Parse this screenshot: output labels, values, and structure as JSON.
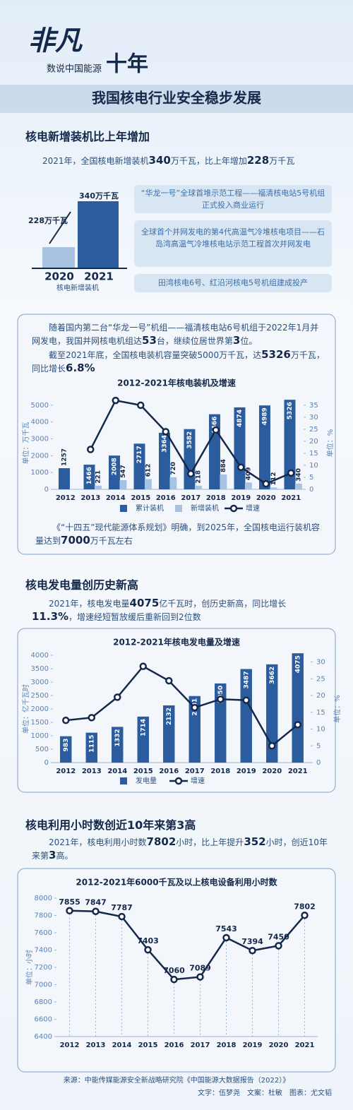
{
  "header": {
    "brand": "非凡",
    "subtitle": "数说中国能源",
    "decade": "十年",
    "title": "我国核电行业安全稳步发展"
  },
  "section1": {
    "heading": "核电新增装机比上年增加",
    "intro": {
      "parts": [
        "2021年，全国核电新增装机",
        "340",
        "万千瓦，比上年增加",
        "228",
        "万千瓦"
      ]
    },
    "graphic": {
      "year_a": "2020",
      "year_b": "2021",
      "increase": "228万千瓦",
      "total": "340万千瓦",
      "caption": "核电新增装机"
    },
    "bullets": [
      "“华龙一号”全球首堆示范工程——福清核电站5号机组正式投入商业运行",
      "全球首个并网发电的第4代高温气冷堆核电项目——石岛湾高温气冷堆核电站示范工程首次并网发电",
      "田湾核电6号、红沿河核电5号机组建成投产"
    ],
    "para1": {
      "parts": [
        "随着国内第二台“华龙一号”机组——福清核电站6号机组于2022年1月并网发电，我国并网核电机组达",
        "53",
        "台，继续位居世界第",
        "3",
        "位。"
      ]
    },
    "para2": {
      "parts": [
        "截至2021年底，全国核电装机容量突破5000万千瓦，达",
        "5326",
        "万千瓦，同比增长",
        "6.8%"
      ]
    },
    "note": {
      "parts": [
        "《“十四五”现代能源体系规划》明确，到2025年，全国核电运行装机容量达到",
        "7000",
        "万千瓦左右"
      ]
    }
  },
  "section2": {
    "heading": "核电发电量创历史新高",
    "intro": {
      "parts": [
        "2021年，核电发电量",
        "4075",
        "亿千瓦时，创历史新高，同比增长",
        "11.3%",
        "，增速经短暂放缓后重新回到2位数"
      ]
    }
  },
  "section3": {
    "heading": "核电利用小时数创近10年来第3高",
    "intro": {
      "parts": [
        "2021年，核电利用小时数",
        "7802",
        "小时，比上年提升",
        "352",
        "小时，创近10年来第",
        "3",
        "高。"
      ]
    }
  },
  "footer": {
    "source": "来源：中能传媒能源安全新战略研究院《中国能源大数据报告（2022）》",
    "credits": "文字：伍梦尧　文案：杜敏　图表：尤文韬"
  },
  "chart_data": [
    {
      "type": "combo",
      "title": "2012-2021年核电装机及增速",
      "y_label": "单位：万千瓦",
      "y2_label": "单位：%",
      "categories": [
        "2012",
        "2013",
        "2014",
        "2015",
        "2016",
        "2017",
        "2018",
        "2019",
        "2020",
        "2021"
      ],
      "series": [
        {
          "name": "累计装机",
          "kind": "bar",
          "color": "#2b5c9e",
          "values": [
            1257,
            1466,
            2008,
            2717,
            3364,
            3582,
            4466,
            4874,
            4989,
            5326
          ]
        },
        {
          "name": "新增装机",
          "kind": "bar",
          "color": "#a8c3e2",
          "values": [
            null,
            221,
            547,
            612,
            720,
            218,
            884,
            409,
            112,
            340
          ]
        },
        {
          "name": "增速",
          "kind": "line",
          "axis": "y2",
          "color": "#14284a",
          "values": [
            null,
            16.6,
            37,
            35,
            24,
            6.5,
            24.7,
            9.2,
            2.3,
            6.8
          ]
        }
      ],
      "ylim": [
        0,
        5500
      ],
      "yticks": [
        0,
        1000,
        2000,
        3000,
        4000,
        5000
      ],
      "y2lim": [
        0,
        38.5
      ],
      "y2ticks": [
        0,
        5,
        10,
        15,
        20,
        25,
        30,
        35
      ],
      "grid": false
    },
    {
      "type": "combo",
      "title": "2012-2021年核电发电量及增速",
      "y_label": "单位：亿千瓦时",
      "y2_label": "单位：%",
      "categories": [
        "2012",
        "2013",
        "2014",
        "2015",
        "2016",
        "2017",
        "2018",
        "2019",
        "2020",
        "2021"
      ],
      "series": [
        {
          "name": "发电量",
          "kind": "bar",
          "color": "#2b5c9e",
          "values": [
            983,
            1115,
            1332,
            1714,
            2132,
            2481,
            2950,
            3487,
            3662,
            4075
          ]
        },
        {
          "name": "增速",
          "kind": "line",
          "axis": "y2",
          "color": "#14284a",
          "values": [
            12.6,
            13.4,
            19.5,
            28.7,
            24.4,
            16.4,
            18.9,
            18.6,
            5,
            11.3
          ]
        }
      ],
      "ylim": [
        0,
        4000
      ],
      "yticks": [
        0,
        500,
        1000,
        1500,
        2000,
        2500,
        3000,
        3500,
        4000
      ],
      "y2lim": [
        0,
        32
      ],
      "y2ticks": [
        0,
        5,
        10,
        15,
        20,
        25,
        30
      ],
      "grid": false
    },
    {
      "type": "line",
      "title": "2012-2021年6000千瓦及以上核电设备利用小时数",
      "y_label": "单位：小时",
      "categories": [
        "2012",
        "2013",
        "2014",
        "2015",
        "2016",
        "2017",
        "2018",
        "2019",
        "2020",
        "2021"
      ],
      "series": [
        {
          "name": "利用小时数",
          "color": "#14284a",
          "values": [
            7855,
            7847,
            7787,
            7403,
            7060,
            7089,
            7543,
            7394,
            7450,
            7802
          ]
        }
      ],
      "ylim": [
        6400,
        8000
      ],
      "yticks": [
        6400,
        6600,
        6800,
        7000,
        7200,
        7400,
        7600,
        7800,
        8000
      ],
      "grid": false
    }
  ]
}
